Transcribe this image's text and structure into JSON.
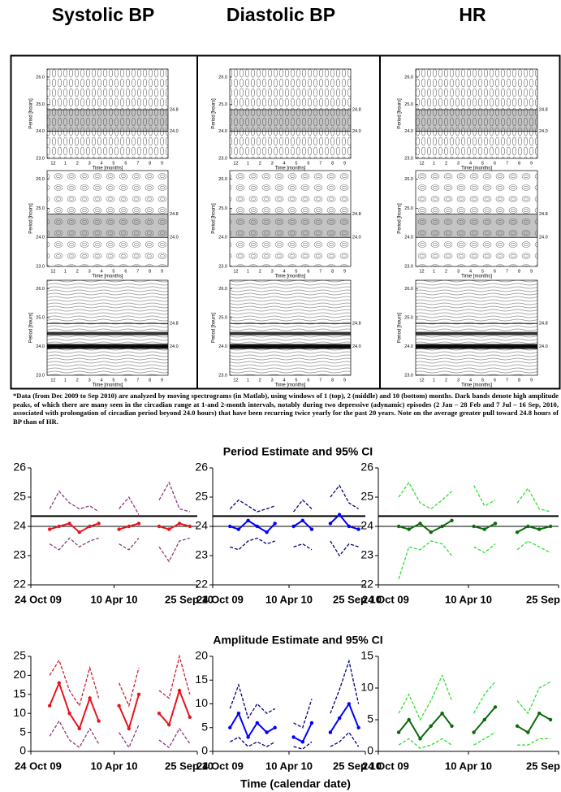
{
  "panel_titles": [
    "Systolic BP",
    "Diastolic BP",
    "HR"
  ],
  "spectrogram": {
    "y_label": "Period [hours]",
    "x_label": "Time [months]",
    "ylim": [
      23,
      26.3
    ],
    "yticks": [
      {
        "value": 23,
        "label": "23.0"
      },
      {
        "value": 24,
        "label": "24.0"
      },
      {
        "value": 25,
        "label": "25.0"
      },
      {
        "value": 26,
        "label": "26.0"
      }
    ],
    "markers": [
      {
        "value": 24,
        "label": "24.0"
      },
      {
        "value": 24.8,
        "label": "24.8"
      }
    ],
    "x_categories": [
      "12",
      "1",
      "2",
      "3",
      "4",
      "5",
      "6",
      "7",
      "8",
      "9"
    ]
  },
  "caption": "*Data (from Dec 2009 to Sep 2010) are analyzed by moving spectrograms (in Matlab), using windows of 1 (top), 2 (middle) and 10 (bottom) months. Dark bands denote high amplitude peaks, of which there are many seen in the circadian range at 1-and 2-month intervals, notably during two depressive (adynamic) episodes (2 Jan – 28 Feb and 7 Jul – 16 Sep, 2010, associated with prolongation of circadian period beyond 24.0 hours) that have been recurring twice yearly for the past 20 years. Note on the average greater pull toward 24.8 hours of BP than of HR.",
  "period_title": "Period Estimate and 95% CI",
  "amplitude_title": "Amplitude Estimate and 95% CI",
  "x_axis_label": "Time (calendar date)",
  "chart_data": [
    {
      "type": "line",
      "xlim": [
        "24 Oct 09",
        "25 Sep 10"
      ],
      "xticks": [
        "24 Oct 09",
        "10 Apr 10",
        "25 Sep 10"
      ],
      "ylim": [
        22,
        26
      ],
      "yticks": [
        22,
        23,
        24,
        25,
        26
      ],
      "hlines": [
        24,
        24.35
      ],
      "x": [
        "1 Dec 09",
        "20 Dec 09",
        "10 Jan 10",
        "30 Jan 10",
        "20 Feb 10",
        "10 Mar 10",
        "30 Mar 10",
        "20 Apr 10",
        "10 May 10",
        "30 May 10",
        "20 Jun 10",
        "10 Jul 10",
        "30 Jul 10",
        "20 Aug 10",
        "10 Sep 10"
      ],
      "series": [
        {
          "color": "#e8141e",
          "style": "solid",
          "values": [
            23.9,
            24.0,
            24.1,
            23.8,
            24.0,
            24.1,
            null,
            23.9,
            24.0,
            24.1,
            null,
            24.0,
            23.9,
            24.1,
            24.0
          ]
        },
        {
          "color": "#8b3a7a",
          "style": "dashed",
          "values": [
            24.6,
            25.2,
            24.8,
            24.6,
            24.7,
            24.5,
            null,
            24.6,
            25.0,
            24.4,
            null,
            24.9,
            25.5,
            24.6,
            24.5
          ]
        },
        {
          "color": "#8b3a7a",
          "style": "dashed",
          "values": [
            23.4,
            23.2,
            23.6,
            23.3,
            23.5,
            23.6,
            null,
            23.4,
            23.2,
            23.6,
            null,
            23.3,
            22.8,
            23.5,
            23.6
          ]
        }
      ]
    },
    {
      "type": "line",
      "xlim": [
        "24 Oct 09",
        "25 Sep 10"
      ],
      "xticks": [
        "24 Oct 09",
        "10 Apr 10",
        "25 Sep 10"
      ],
      "ylim": [
        22,
        26
      ],
      "yticks": [
        22,
        23,
        24,
        25,
        26
      ],
      "hlines": [
        24,
        24.35
      ],
      "x": [
        "1 Dec 09",
        "20 Dec 09",
        "10 Jan 10",
        "30 Jan 10",
        "20 Feb 10",
        "10 Mar 10",
        "30 Mar 10",
        "20 Apr 10",
        "10 May 10",
        "30 May 10",
        "20 Jun 10",
        "10 Jul 10",
        "30 Jul 10",
        "20 Aug 10",
        "10 Sep 10"
      ],
      "series": [
        {
          "color": "#0000ff",
          "style": "solid",
          "values": [
            24.0,
            23.9,
            24.2,
            24.0,
            23.8,
            24.1,
            null,
            24.0,
            24.2,
            23.9,
            null,
            24.1,
            24.4,
            24.0,
            23.9
          ]
        },
        {
          "color": "#00007a",
          "style": "dashed",
          "values": [
            24.6,
            24.9,
            24.7,
            24.5,
            24.6,
            24.7,
            null,
            24.5,
            24.9,
            24.6,
            null,
            25.0,
            25.4,
            24.8,
            24.6
          ]
        },
        {
          "color": "#00007a",
          "style": "dashed",
          "values": [
            23.3,
            23.2,
            23.5,
            23.6,
            23.4,
            23.5,
            null,
            23.3,
            23.4,
            23.2,
            null,
            23.5,
            23.0,
            23.4,
            23.3
          ]
        }
      ]
    },
    {
      "type": "line",
      "xlim": [
        "24 Oct 09",
        "25 Sep 10"
      ],
      "xticks": [
        "24 Oct 09",
        "10 Apr 10",
        "25 Sep 10"
      ],
      "ylim": [
        22,
        26
      ],
      "yticks": [
        22,
        23,
        24,
        25,
        26
      ],
      "hlines": [
        24,
        24.35
      ],
      "x": [
        "1 Dec 09",
        "20 Dec 09",
        "10 Jan 10",
        "30 Jan 10",
        "20 Feb 10",
        "10 Mar 10",
        "30 Mar 10",
        "20 Apr 10",
        "10 May 10",
        "30 May 10",
        "20 Jun 10",
        "10 Jul 10",
        "30 Jul 10",
        "20 Aug 10",
        "10 Sep 10"
      ],
      "series": [
        {
          "color": "#0a6a0a",
          "style": "solid",
          "values": [
            24.0,
            23.9,
            24.1,
            23.8,
            24.0,
            24.2,
            null,
            24.0,
            23.9,
            24.1,
            null,
            23.8,
            24.0,
            23.9,
            24.0
          ]
        },
        {
          "color": "#33dd33",
          "style": "dashed",
          "values": [
            25.0,
            25.5,
            24.8,
            24.6,
            24.9,
            25.2,
            null,
            25.4,
            24.7,
            24.9,
            null,
            24.8,
            25.3,
            24.6,
            24.5
          ]
        },
        {
          "color": "#33dd33",
          "style": "dashed",
          "values": [
            22.2,
            23.3,
            23.2,
            23.5,
            23.4,
            23.0,
            null,
            23.3,
            23.1,
            23.4,
            null,
            23.2,
            23.5,
            23.3,
            23.1
          ]
        }
      ]
    },
    {
      "type": "line",
      "xlim": [
        "24 Oct 09",
        "25 Sep 10"
      ],
      "xticks": [
        "24 Oct 09",
        "10 Apr 10",
        "25 Sep 10"
      ],
      "ylim": [
        0,
        25
      ],
      "yticks": [
        0,
        5,
        10,
        15,
        20,
        25
      ],
      "x": [
        "1 Dec 09",
        "20 Dec 09",
        "10 Jan 10",
        "30 Jan 10",
        "20 Feb 10",
        "10 Mar 10",
        "30 Mar 10",
        "20 Apr 10",
        "10 May 10",
        "30 May 10",
        "20 Jun 10",
        "10 Jul 10",
        "30 Jul 10",
        "20 Aug 10",
        "10 Sep 10"
      ],
      "series": [
        {
          "color": "#e8141e",
          "style": "solid",
          "values": [
            12,
            18,
            10,
            6,
            14,
            8,
            null,
            12,
            6,
            15,
            null,
            10,
            7,
            16,
            9
          ]
        },
        {
          "color": "#d02030",
          "style": "dashed",
          "values": [
            20,
            24,
            16,
            12,
            22,
            14,
            null,
            18,
            12,
            22,
            null,
            16,
            14,
            25,
            15
          ]
        },
        {
          "color": "#8b3a7a",
          "style": "dashed",
          "values": [
            4,
            8,
            3,
            1,
            6,
            2,
            null,
            5,
            1,
            7,
            null,
            3,
            1,
            6,
            2
          ]
        }
      ]
    },
    {
      "type": "line",
      "xlim": [
        "24 Oct 09",
        "25 Sep 10"
      ],
      "xticks": [
        "24 Oct 09",
        "10 Apr 10",
        "25 Sep 10"
      ],
      "ylim": [
        0,
        20
      ],
      "yticks": [
        0,
        5,
        10,
        15,
        20
      ],
      "x": [
        "1 Dec 09",
        "20 Dec 09",
        "10 Jan 10",
        "30 Jan 10",
        "20 Feb 10",
        "10 Mar 10",
        "30 Mar 10",
        "20 Apr 10",
        "10 May 10",
        "30 May 10",
        "20 Jun 10",
        "10 Jul 10",
        "30 Jul 10",
        "20 Aug 10",
        "10 Sep 10"
      ],
      "series": [
        {
          "color": "#0000ff",
          "style": "solid",
          "values": [
            5,
            8,
            3,
            6,
            4,
            5,
            null,
            3,
            2,
            6,
            null,
            4,
            7,
            10,
            5
          ]
        },
        {
          "color": "#00007a",
          "style": "dashed",
          "values": [
            9,
            14,
            7,
            10,
            8,
            9,
            null,
            6,
            5,
            11,
            null,
            8,
            13,
            19,
            10
          ]
        },
        {
          "color": "#00007a",
          "style": "dashed",
          "values": [
            2,
            3,
            1,
            2,
            1,
            2,
            null,
            1,
            0.5,
            2,
            null,
            1,
            2,
            4,
            1
          ]
        }
      ]
    },
    {
      "type": "line",
      "xlim": [
        "24 Oct 09",
        "25 Sep 10"
      ],
      "xticks": [
        "24 Oct 09",
        "10 Apr 10",
        "25 Sep 10"
      ],
      "ylim": [
        0,
        15
      ],
      "yticks": [
        0,
        5,
        10,
        15
      ],
      "x": [
        "1 Dec 09",
        "20 Dec 09",
        "10 Jan 10",
        "30 Jan 10",
        "20 Feb 10",
        "10 Mar 10",
        "30 Mar 10",
        "20 Apr 10",
        "10 May 10",
        "30 May 10",
        "20 Jun 10",
        "10 Jul 10",
        "30 Jul 10",
        "20 Aug 10",
        "10 Sep 10"
      ],
      "series": [
        {
          "color": "#0a6a0a",
          "style": "solid",
          "values": [
            3,
            5,
            2,
            4,
            6,
            4,
            null,
            3,
            5,
            7,
            null,
            4,
            3,
            6,
            5
          ]
        },
        {
          "color": "#33dd33",
          "style": "dashed",
          "values": [
            6,
            9,
            5,
            8,
            12,
            8,
            null,
            6,
            9,
            11,
            null,
            8,
            6,
            10,
            11
          ]
        },
        {
          "color": "#33dd33",
          "style": "dashed",
          "values": [
            1,
            2,
            0.5,
            1,
            2,
            1,
            null,
            1,
            2,
            3,
            null,
            1,
            1,
            2,
            2
          ]
        }
      ]
    }
  ]
}
